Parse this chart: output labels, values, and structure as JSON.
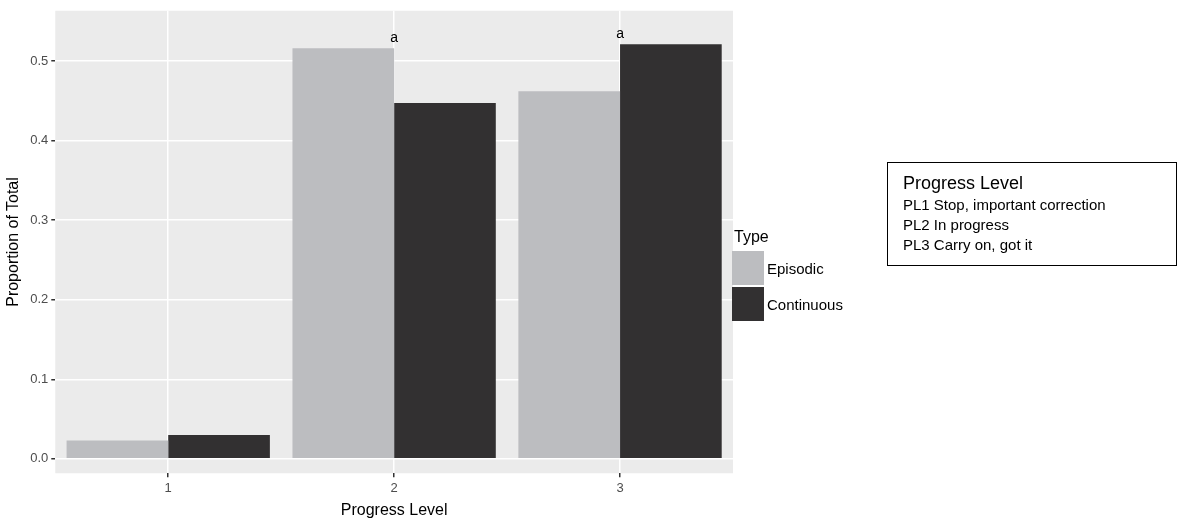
{
  "chart_data": {
    "type": "bar",
    "xlabel": "Progress Level",
    "ylabel": "Proportion of Total",
    "legend_title": "Type",
    "legend": "right",
    "grid": true,
    "categories": [
      "1",
      "2",
      "3"
    ],
    "series": [
      {
        "name": "Episodic",
        "color": "#bcbdc0",
        "values": [
          0.023,
          0.516,
          0.462
        ]
      },
      {
        "name": "Continuous",
        "color": "#323031",
        "values": [
          0.03,
          0.447,
          0.521
        ]
      }
    ],
    "ylim": [
      -0.018,
      0.563
    ],
    "yticks": [
      {
        "value": 0,
        "label": "0.0"
      },
      0.1,
      0.2,
      0.3,
      0.4,
      0.5
    ],
    "annotations": [
      {
        "text": "a",
        "x": "2",
        "y": 0.516
      },
      {
        "text": "a",
        "x": "3",
        "y": 0.521
      },
      "Progress Level",
      "PL1 Stop, important correction",
      "PL2 In progress",
      "PL3 Carry on, got it"
    ]
  }
}
